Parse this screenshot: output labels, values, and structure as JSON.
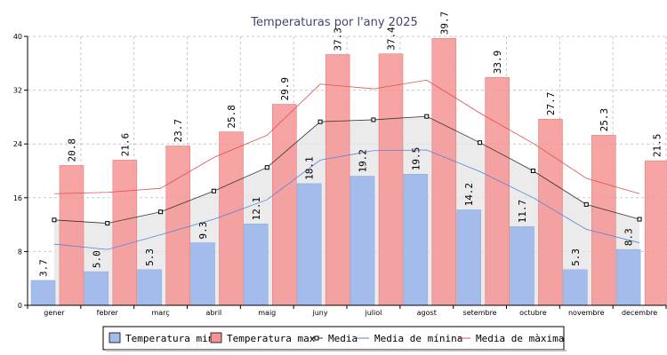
{
  "chart_data": {
    "type": "bar",
    "title": "Temperaturas por l'any 2025",
    "categories": [
      "gener",
      "febrer",
      "març",
      "abril",
      "maig",
      "juny",
      "juliol",
      "agost",
      "setembre",
      "octubre",
      "novembre",
      "decembre"
    ],
    "ylim": [
      0,
      40
    ],
    "yticks": [
      0,
      8,
      16,
      24,
      32,
      40
    ],
    "grid": true,
    "legend_position": "bottom",
    "series": [
      {
        "name": "Temperatura min",
        "kind": "bar",
        "color": "#a4bcec",
        "stroke": "#8aa6d6",
        "values": [
          3.7,
          5.0,
          5.3,
          9.3,
          12.1,
          18.1,
          19.2,
          19.5,
          14.2,
          11.7,
          5.3,
          8.3
        ]
      },
      {
        "name": "Temperatura max",
        "kind": "bar",
        "color": "#f59494",
        "stroke": "#e07070",
        "values": [
          20.8,
          21.6,
          23.7,
          25.8,
          29.9,
          37.3,
          37.4,
          39.7,
          33.9,
          27.7,
          25.3,
          21.5
        ]
      },
      {
        "name": "Media",
        "kind": "line-marker",
        "color": "#333333",
        "fill": "#e4e4e4",
        "values": [
          12.7,
          12.2,
          13.9,
          17.0,
          20.5,
          27.3,
          27.6,
          28.1,
          24.2,
          20.0,
          15.0,
          12.8
        ]
      },
      {
        "name": "Media de mínina",
        "kind": "line",
        "color": "#5b82d6",
        "values": [
          9.1,
          8.3,
          10.5,
          12.8,
          15.7,
          21.6,
          23.0,
          23.1,
          19.9,
          16.0,
          11.3,
          9.3
        ]
      },
      {
        "name": "Media de màxima",
        "kind": "line",
        "color": "#e05050",
        "values": [
          16.6,
          16.8,
          17.4,
          22.0,
          25.3,
          32.9,
          32.2,
          33.5,
          28.6,
          24.1,
          18.9,
          16.6
        ]
      }
    ]
  }
}
